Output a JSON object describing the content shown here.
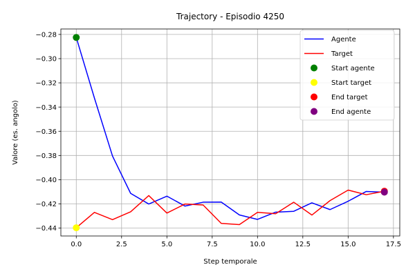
{
  "chart_data": {
    "type": "line",
    "title": "Trajectory - Episodio 4250",
    "xlabel": "Step temporale",
    "ylabel": "Valore (es. angolo)",
    "xlim": [
      -0.85,
      17.85
    ],
    "ylim": [
      -0.4465,
      -0.2755
    ],
    "xticks": [
      0.0,
      2.5,
      5.0,
      7.5,
      10.0,
      12.5,
      15.0,
      17.5
    ],
    "xtick_labels": [
      "0.0",
      "2.5",
      "5.0",
      "7.5",
      "10.0",
      "12.5",
      "15.0",
      "17.5"
    ],
    "yticks": [
      -0.28,
      -0.3,
      -0.32,
      -0.34,
      -0.36,
      -0.38,
      -0.4,
      -0.42,
      -0.44
    ],
    "ytick_labels": [
      "−0.28",
      "−0.30",
      "−0.32",
      "−0.34",
      "−0.36",
      "−0.38",
      "−0.40",
      "−0.42",
      "−0.44"
    ],
    "grid": true,
    "legend_position": "top-right",
    "series": [
      {
        "name": "Agente",
        "color": "#0000ff",
        "x": [
          0,
          1,
          2,
          3,
          4,
          5,
          6,
          7,
          8,
          9,
          10,
          11,
          12,
          13,
          14,
          15,
          16,
          17
        ],
        "y": [
          -0.2825,
          -0.3325,
          -0.3805,
          -0.4113,
          -0.4201,
          -0.4136,
          -0.4218,
          -0.4186,
          -0.4185,
          -0.4291,
          -0.4328,
          -0.4268,
          -0.4261,
          -0.4191,
          -0.4247,
          -0.4178,
          -0.4097,
          -0.4103
        ]
      },
      {
        "name": "Target",
        "color": "#ff0000",
        "x": [
          0,
          1,
          2,
          3,
          4,
          5,
          6,
          7,
          8,
          9,
          10,
          11,
          12,
          13,
          14,
          15,
          16,
          17
        ],
        "y": [
          -0.4397,
          -0.427,
          -0.433,
          -0.4265,
          -0.4131,
          -0.4276,
          -0.4201,
          -0.4209,
          -0.4361,
          -0.4371,
          -0.427,
          -0.4281,
          -0.4186,
          -0.4292,
          -0.4173,
          -0.4086,
          -0.4124,
          -0.4095
        ]
      }
    ],
    "points": [
      {
        "name": "Start agente",
        "color": "#008000",
        "x": 0,
        "y": -0.2825
      },
      {
        "name": "Start target",
        "color": "#ffff00",
        "x": 0,
        "y": -0.4397
      },
      {
        "name": "End target",
        "color": "#ff0000",
        "x": 17,
        "y": -0.4095
      },
      {
        "name": "End agente",
        "color": "#800080",
        "x": 17,
        "y": -0.4103
      }
    ],
    "legend": [
      {
        "label": "Agente",
        "kind": "line",
        "color": "#0000ff"
      },
      {
        "label": "Target",
        "kind": "line",
        "color": "#ff0000"
      },
      {
        "label": "Start agente",
        "kind": "marker",
        "color": "#008000"
      },
      {
        "label": "Start target",
        "kind": "marker",
        "color": "#ffff00"
      },
      {
        "label": "End target",
        "kind": "marker",
        "color": "#ff0000"
      },
      {
        "label": "End agente",
        "kind": "marker",
        "color": "#800080"
      }
    ]
  }
}
